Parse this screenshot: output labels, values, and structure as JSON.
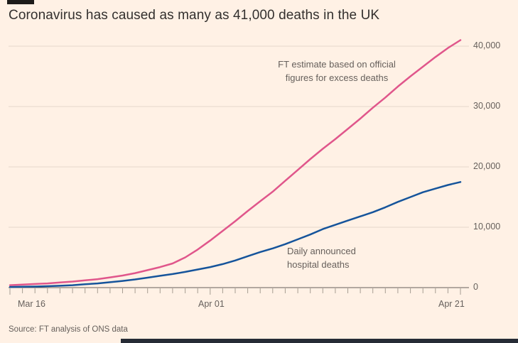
{
  "header": {
    "title": "Coronavirus has caused as many as 41,000 deaths in the UK"
  },
  "annotations": {
    "excess_line": "FT estimate based on official\nfigures for excess deaths",
    "hospital_line": "Daily announced\nhospital deaths"
  },
  "source": "Source: FT analysis of ONS data",
  "colors": {
    "background": "#fff1e5",
    "grid": "#e4d8ca",
    "axis": "#66605c",
    "tick": "#a69d92",
    "excess_series": "#e0568b",
    "hospital_series": "#15549b",
    "text_muted": "#66605c",
    "footer_bar": "#262b35",
    "top_marker": "#1d1b19"
  },
  "chart_data": {
    "type": "line",
    "title": "Coronavirus has caused as many as 41,000 deaths in the UK",
    "xlabel": "",
    "ylabel": "",
    "grid": "horizontal",
    "legend_position": "inline-annotations",
    "ylim": [
      0,
      42000
    ],
    "yticks": [
      0,
      10000,
      20000,
      30000,
      40000
    ],
    "ytick_labels_desc": [
      "40,000",
      "30,000",
      "20,000",
      "10,000",
      "0"
    ],
    "xticks": [
      {
        "label": "Mar 16",
        "index": 0
      },
      {
        "label": "Apr 01",
        "index": 16
      },
      {
        "label": "Apr 21",
        "index": 36
      }
    ],
    "x": [
      "Mar 16",
      "Mar 17",
      "Mar 18",
      "Mar 19",
      "Mar 20",
      "Mar 21",
      "Mar 22",
      "Mar 23",
      "Mar 24",
      "Mar 25",
      "Mar 26",
      "Mar 27",
      "Mar 28",
      "Mar 29",
      "Mar 30",
      "Mar 31",
      "Apr 01",
      "Apr 02",
      "Apr 03",
      "Apr 04",
      "Apr 05",
      "Apr 06",
      "Apr 07",
      "Apr 08",
      "Apr 09",
      "Apr 10",
      "Apr 11",
      "Apr 12",
      "Apr 13",
      "Apr 14",
      "Apr 15",
      "Apr 16",
      "Apr 17",
      "Apr 18",
      "Apr 19",
      "Apr 20",
      "Apr 21"
    ],
    "series": [
      {
        "name": "FT estimate based on official figures for excess deaths",
        "color": "#e0568b",
        "values": [
          400,
          500,
          600,
          700,
          850,
          1000,
          1200,
          1400,
          1700,
          2000,
          2400,
          2900,
          3400,
          4000,
          5000,
          6300,
          7800,
          9400,
          11000,
          12700,
          14300,
          15900,
          17700,
          19500,
          21300,
          23000,
          24600,
          26300,
          28000,
          29800,
          31500,
          33300,
          35000,
          36600,
          38200,
          39700,
          41000
        ]
      },
      {
        "name": "Daily announced hospital deaths",
        "color": "#15549b",
        "values": [
          100,
          140,
          180,
          230,
          300,
          400,
          550,
          700,
          900,
          1100,
          1350,
          1650,
          1950,
          2250,
          2600,
          3000,
          3400,
          3900,
          4500,
          5200,
          5900,
          6500,
          7200,
          8000,
          8800,
          9700,
          10400,
          11100,
          11800,
          12500,
          13300,
          14200,
          15000,
          15800,
          16400,
          17000,
          17500
        ]
      }
    ]
  }
}
